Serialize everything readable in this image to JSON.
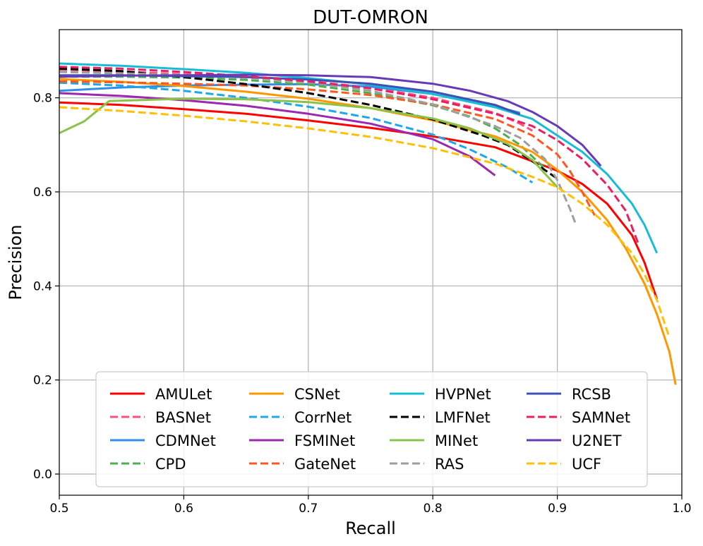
{
  "chart_data": {
    "type": "line",
    "title": "DUT-OMRON",
    "xlabel": "Recall",
    "ylabel": "Precision",
    "xlim": [
      0.5,
      1.0
    ],
    "ylim": [
      -0.045,
      0.945
    ],
    "xticks": [
      "0.5",
      "0.6",
      "0.7",
      "0.8",
      "0.9",
      "1.0"
    ],
    "yticks": [
      "0.0",
      "0.2",
      "0.4",
      "0.6",
      "0.8"
    ],
    "xtick_values": [
      0.5,
      0.6,
      0.7,
      0.8,
      0.9,
      1.0
    ],
    "ytick_values": [
      0.0,
      0.2,
      0.4,
      0.6,
      0.8
    ],
    "grid": true,
    "legend": {
      "position": "lower-center",
      "columns": 4
    },
    "series": [
      {
        "name": "AMULet",
        "color": "#ff0000",
        "dashed": false,
        "points": [
          [
            0.5,
            0.79
          ],
          [
            0.55,
            0.785
          ],
          [
            0.6,
            0.776
          ],
          [
            0.65,
            0.766
          ],
          [
            0.7,
            0.752
          ],
          [
            0.75,
            0.736
          ],
          [
            0.8,
            0.718
          ],
          [
            0.85,
            0.695
          ],
          [
            0.9,
            0.645
          ],
          [
            0.92,
            0.617
          ],
          [
            0.94,
            0.575
          ],
          [
            0.96,
            0.508
          ],
          [
            0.97,
            0.45
          ],
          [
            0.98,
            0.372
          ]
        ]
      },
      {
        "name": "BASNet",
        "color": "#ff4d7a",
        "dashed": true,
        "points": [
          [
            0.5,
            0.86
          ],
          [
            0.55,
            0.856
          ],
          [
            0.6,
            0.85
          ],
          [
            0.65,
            0.844
          ],
          [
            0.7,
            0.835
          ],
          [
            0.75,
            0.822
          ],
          [
            0.8,
            0.8
          ],
          [
            0.85,
            0.768
          ],
          [
            0.87,
            0.745
          ],
          [
            0.88,
            0.73
          ]
        ]
      },
      {
        "name": "CDMNet",
        "color": "#2f8ee8",
        "dashed": false,
        "points": [
          [
            0.5,
            0.815
          ],
          [
            0.55,
            0.822
          ],
          [
            0.6,
            0.826
          ],
          [
            0.65,
            0.828
          ],
          [
            0.7,
            0.829
          ],
          [
            0.75,
            0.824
          ],
          [
            0.8,
            0.808
          ],
          [
            0.85,
            0.782
          ],
          [
            0.87,
            0.768
          ]
        ]
      },
      {
        "name": "CPD",
        "color": "#4caf50",
        "dashed": true,
        "points": [
          [
            0.5,
            0.845
          ],
          [
            0.55,
            0.845
          ],
          [
            0.6,
            0.843
          ],
          [
            0.65,
            0.838
          ],
          [
            0.7,
            0.828
          ],
          [
            0.75,
            0.81
          ],
          [
            0.8,
            0.784
          ],
          [
            0.83,
            0.76
          ],
          [
            0.85,
            0.735
          ],
          [
            0.87,
            0.7
          ],
          [
            0.88,
            0.675
          ],
          [
            0.89,
            0.65
          ]
        ]
      },
      {
        "name": "CSNet",
        "color": "#ff9800",
        "dashed": false,
        "points": [
          [
            0.5,
            0.84
          ],
          [
            0.55,
            0.834
          ],
          [
            0.6,
            0.825
          ],
          [
            0.65,
            0.813
          ],
          [
            0.7,
            0.798
          ],
          [
            0.75,
            0.778
          ],
          [
            0.8,
            0.752
          ],
          [
            0.85,
            0.718
          ],
          [
            0.88,
            0.685
          ],
          [
            0.9,
            0.647
          ],
          [
            0.92,
            0.6
          ],
          [
            0.94,
            0.54
          ],
          [
            0.955,
            0.48
          ],
          [
            0.97,
            0.405
          ],
          [
            0.98,
            0.34
          ],
          [
            0.99,
            0.26
          ],
          [
            0.995,
            0.19
          ]
        ]
      },
      {
        "name": "CorrNet",
        "color": "#1ea8e8",
        "dashed": true,
        "points": [
          [
            0.5,
            0.832
          ],
          [
            0.55,
            0.826
          ],
          [
            0.6,
            0.815
          ],
          [
            0.65,
            0.8
          ],
          [
            0.7,
            0.781
          ],
          [
            0.75,
            0.757
          ],
          [
            0.8,
            0.722
          ],
          [
            0.83,
            0.69
          ],
          [
            0.86,
            0.652
          ],
          [
            0.88,
            0.62
          ]
        ]
      },
      {
        "name": "FSMINet",
        "color": "#9c27b0",
        "dashed": false,
        "points": [
          [
            0.5,
            0.81
          ],
          [
            0.55,
            0.804
          ],
          [
            0.6,
            0.795
          ],
          [
            0.65,
            0.783
          ],
          [
            0.7,
            0.766
          ],
          [
            0.75,
            0.745
          ],
          [
            0.8,
            0.712
          ],
          [
            0.83,
            0.675
          ],
          [
            0.85,
            0.635
          ]
        ]
      },
      {
        "name": "GateNet",
        "color": "#ff5722",
        "dashed": true,
        "points": [
          [
            0.5,
            0.835
          ],
          [
            0.55,
            0.833
          ],
          [
            0.6,
            0.83
          ],
          [
            0.65,
            0.826
          ],
          [
            0.7,
            0.818
          ],
          [
            0.75,
            0.806
          ],
          [
            0.8,
            0.786
          ],
          [
            0.85,
            0.755
          ],
          [
            0.88,
            0.72
          ],
          [
            0.9,
            0.68
          ],
          [
            0.91,
            0.645
          ],
          [
            0.92,
            0.6
          ],
          [
            0.93,
            0.55
          ]
        ]
      },
      {
        "name": "HVPNet",
        "color": "#17bcd6",
        "dashed": false,
        "points": [
          [
            0.5,
            0.873
          ],
          [
            0.55,
            0.868
          ],
          [
            0.6,
            0.861
          ],
          [
            0.65,
            0.853
          ],
          [
            0.7,
            0.842
          ],
          [
            0.75,
            0.828
          ],
          [
            0.8,
            0.808
          ],
          [
            0.85,
            0.78
          ],
          [
            0.88,
            0.755
          ],
          [
            0.9,
            0.72
          ],
          [
            0.92,
            0.685
          ],
          [
            0.94,
            0.638
          ],
          [
            0.96,
            0.575
          ],
          [
            0.97,
            0.53
          ],
          [
            0.98,
            0.47
          ]
        ]
      },
      {
        "name": "LMFNet",
        "color": "#000000",
        "dashed": true,
        "points": [
          [
            0.5,
            0.862
          ],
          [
            0.55,
            0.857
          ],
          [
            0.6,
            0.844
          ],
          [
            0.65,
            0.829
          ],
          [
            0.7,
            0.81
          ],
          [
            0.75,
            0.785
          ],
          [
            0.8,
            0.754
          ],
          [
            0.84,
            0.72
          ],
          [
            0.86,
            0.7
          ],
          [
            0.88,
            0.665
          ],
          [
            0.9,
            0.628
          ]
        ]
      },
      {
        "name": "MINet",
        "color": "#8bc34a",
        "dashed": false,
        "points": [
          [
            0.5,
            0.725
          ],
          [
            0.52,
            0.75
          ],
          [
            0.54,
            0.793
          ],
          [
            0.6,
            0.798
          ],
          [
            0.65,
            0.797
          ],
          [
            0.7,
            0.791
          ],
          [
            0.75,
            0.778
          ],
          [
            0.8,
            0.756
          ],
          [
            0.83,
            0.735
          ],
          [
            0.86,
            0.702
          ],
          [
            0.88,
            0.668
          ],
          [
            0.9,
            0.61
          ]
        ]
      },
      {
        "name": "RAS",
        "color": "#9e9e9e",
        "dashed": true,
        "points": [
          [
            0.5,
            0.855
          ],
          [
            0.55,
            0.852
          ],
          [
            0.6,
            0.849
          ],
          [
            0.65,
            0.843
          ],
          [
            0.7,
            0.833
          ],
          [
            0.75,
            0.815
          ],
          [
            0.8,
            0.786
          ],
          [
            0.85,
            0.74
          ],
          [
            0.87,
            0.715
          ],
          [
            0.89,
            0.67
          ],
          [
            0.9,
            0.625
          ],
          [
            0.91,
            0.565
          ],
          [
            0.915,
            0.53
          ]
        ]
      },
      {
        "name": "RCSB",
        "color": "#3f51b5",
        "dashed": false,
        "points": [
          [
            0.5,
            0.848
          ],
          [
            0.55,
            0.848
          ],
          [
            0.6,
            0.846
          ],
          [
            0.65,
            0.844
          ],
          [
            0.7,
            0.839
          ],
          [
            0.75,
            0.83
          ],
          [
            0.8,
            0.813
          ],
          [
            0.85,
            0.785
          ],
          [
            0.87,
            0.765
          ]
        ]
      },
      {
        "name": "SAMNet",
        "color": "#e91e63",
        "dashed": true,
        "points": [
          [
            0.5,
            0.866
          ],
          [
            0.55,
            0.862
          ],
          [
            0.6,
            0.855
          ],
          [
            0.65,
            0.846
          ],
          [
            0.7,
            0.835
          ],
          [
            0.75,
            0.82
          ],
          [
            0.8,
            0.797
          ],
          [
            0.85,
            0.766
          ],
          [
            0.88,
            0.74
          ],
          [
            0.9,
            0.71
          ],
          [
            0.92,
            0.67
          ],
          [
            0.94,
            0.615
          ],
          [
            0.955,
            0.56
          ],
          [
            0.965,
            0.49
          ]
        ]
      },
      {
        "name": "U2NET",
        "color": "#673ab7",
        "dashed": false,
        "points": [
          [
            0.5,
            0.845
          ],
          [
            0.55,
            0.847
          ],
          [
            0.6,
            0.848
          ],
          [
            0.65,
            0.849
          ],
          [
            0.7,
            0.848
          ],
          [
            0.75,
            0.844
          ],
          [
            0.8,
            0.83
          ],
          [
            0.83,
            0.815
          ],
          [
            0.86,
            0.793
          ],
          [
            0.88,
            0.77
          ],
          [
            0.9,
            0.74
          ],
          [
            0.92,
            0.7
          ],
          [
            0.935,
            0.655
          ]
        ]
      },
      {
        "name": "UCF",
        "color": "#ffc107",
        "dashed": true,
        "points": [
          [
            0.5,
            0.78
          ],
          [
            0.55,
            0.772
          ],
          [
            0.6,
            0.762
          ],
          [
            0.65,
            0.75
          ],
          [
            0.7,
            0.735
          ],
          [
            0.75,
            0.717
          ],
          [
            0.8,
            0.693
          ],
          [
            0.85,
            0.66
          ],
          [
            0.88,
            0.632
          ],
          [
            0.9,
            0.61
          ],
          [
            0.92,
            0.575
          ],
          [
            0.94,
            0.53
          ],
          [
            0.96,
            0.47
          ],
          [
            0.97,
            0.425
          ],
          [
            0.98,
            0.37
          ],
          [
            0.99,
            0.29
          ]
        ]
      }
    ]
  }
}
